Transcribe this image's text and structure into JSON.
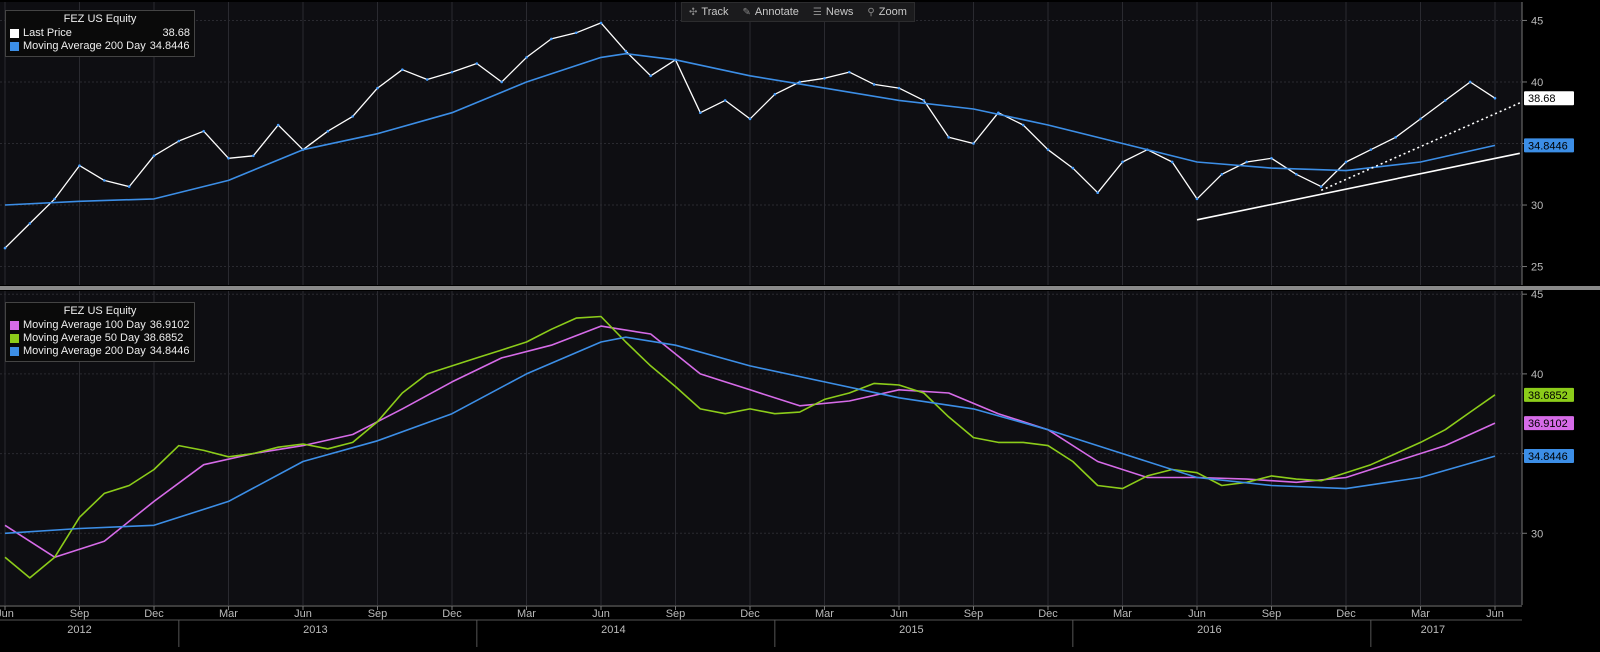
{
  "toolbar": {
    "items": [
      {
        "label": "Track",
        "icon": "crosshair-icon"
      },
      {
        "label": "Annotate",
        "icon": "pencil-icon"
      },
      {
        "label": "News",
        "icon": "news-icon"
      },
      {
        "label": "Zoom",
        "icon": "magnifier-icon"
      }
    ]
  },
  "colors": {
    "background": "#000000",
    "plot_bg": "#0e0e12",
    "grid": "#2a2a30",
    "price": "#ffffff",
    "ma200": "#3c8ee6",
    "ma100": "#d66be8",
    "ma50": "#8ccc1a",
    "separator": "#8a8a8a"
  },
  "top_legend": {
    "title": "FEZ US Equity",
    "rows": [
      {
        "name": "Last Price",
        "value": "38.68",
        "color": "#ffffff"
      },
      {
        "name": "Moving Average 200 Day",
        "value": "34.8446",
        "color": "#3c8ee6"
      }
    ]
  },
  "bottom_legend": {
    "title": "FEZ US Equity",
    "rows": [
      {
        "name": "Moving Average 100 Day",
        "value": "36.9102",
        "color": "#d66be8"
      },
      {
        "name": "Moving Average 50 Day",
        "value": "38.6852",
        "color": "#8ccc1a"
      },
      {
        "name": "Moving Average 200 Day",
        "value": "34.8446",
        "color": "#3c8ee6"
      }
    ]
  },
  "chart_data": [
    {
      "type": "line",
      "panel": "top",
      "title": "",
      "ylim": [
        23.5,
        46.5
      ],
      "y_ticks": [
        25,
        30,
        35,
        40,
        45
      ],
      "x_start": "2012-06",
      "x_end": "2017-06",
      "last_labels": [
        {
          "series": "Last Price",
          "value": 38.68,
          "text": "38.68",
          "color": "#ffffff"
        },
        {
          "series": "Moving Average 200 Day",
          "value": 34.8446,
          "text": "34.8446",
          "color": "#3c8ee6"
        }
      ],
      "series": [
        {
          "name": "Last Price",
          "color": "#ffffff",
          "x": [
            "2012-06",
            "2012-07",
            "2012-08",
            "2012-09",
            "2012-10",
            "2012-11",
            "2012-12",
            "2013-01",
            "2013-02",
            "2013-03",
            "2013-04",
            "2013-05",
            "2013-06",
            "2013-07",
            "2013-08",
            "2013-09",
            "2013-10",
            "2013-11",
            "2013-12",
            "2014-01",
            "2014-02",
            "2014-03",
            "2014-04",
            "2014-05",
            "2014-06",
            "2014-07",
            "2014-08",
            "2014-09",
            "2014-10",
            "2014-11",
            "2014-12",
            "2015-01",
            "2015-02",
            "2015-03",
            "2015-04",
            "2015-05",
            "2015-06",
            "2015-07",
            "2015-08",
            "2015-09",
            "2015-10",
            "2015-11",
            "2015-12",
            "2016-01",
            "2016-02",
            "2016-03",
            "2016-04",
            "2016-05",
            "2016-06",
            "2016-07",
            "2016-08",
            "2016-09",
            "2016-10",
            "2016-11",
            "2016-12",
            "2017-01",
            "2017-02",
            "2017-03",
            "2017-04",
            "2017-05",
            "2017-06"
          ],
          "values": [
            26.5,
            28.5,
            30.5,
            33.2,
            32.0,
            31.5,
            34.0,
            35.2,
            36.0,
            33.8,
            34.0,
            36.5,
            34.5,
            36.0,
            37.2,
            39.5,
            41.0,
            40.2,
            40.8,
            41.5,
            40.0,
            42.0,
            43.5,
            44.0,
            44.8,
            42.5,
            40.5,
            41.8,
            37.5,
            38.5,
            37.0,
            39.0,
            40.0,
            40.3,
            40.8,
            39.8,
            39.5,
            38.5,
            35.5,
            35.0,
            37.5,
            36.5,
            34.5,
            33.0,
            31.0,
            33.5,
            34.5,
            33.5,
            30.5,
            32.5,
            33.5,
            33.8,
            32.5,
            31.5,
            33.5,
            34.5,
            35.5,
            37.0,
            38.5,
            40.0,
            38.68
          ]
        },
        {
          "name": "Moving Average 200 Day",
          "color": "#3c8ee6",
          "x": [
            "2012-06",
            "2012-09",
            "2012-12",
            "2013-03",
            "2013-06",
            "2013-09",
            "2013-12",
            "2014-03",
            "2014-06",
            "2014-07",
            "2014-09",
            "2014-12",
            "2015-03",
            "2015-06",
            "2015-09",
            "2015-12",
            "2016-03",
            "2016-06",
            "2016-09",
            "2016-12",
            "2017-03",
            "2017-06"
          ],
          "values": [
            30.0,
            30.3,
            30.5,
            32.0,
            34.5,
            35.8,
            37.5,
            40.0,
            42.0,
            42.3,
            41.8,
            40.5,
            39.5,
            38.5,
            37.8,
            36.5,
            35.0,
            33.5,
            33.0,
            32.8,
            33.5,
            34.8446
          ]
        },
        {
          "name": "Support trend line",
          "color": "#ffffff",
          "x": [
            "2016-06",
            "2017-07"
          ],
          "values": [
            28.8,
            34.2
          ]
        },
        {
          "name": "Dotted trend line",
          "color": "#ffffff",
          "dashed": true,
          "x": [
            "2016-11",
            "2017-07"
          ],
          "values": [
            31.2,
            38.3
          ]
        }
      ]
    },
    {
      "type": "line",
      "panel": "bottom",
      "title": "",
      "ylim": [
        25.5,
        45.2
      ],
      "y_ticks": [
        30,
        35,
        40,
        45
      ],
      "x_start": "2012-06",
      "x_end": "2017-06",
      "x_tick_labels": [
        "Jun",
        "Sep",
        "Dec",
        "Mar",
        "Jun",
        "Sep",
        "Dec",
        "Mar",
        "Jun",
        "Sep",
        "Dec",
        "Mar",
        "Jun",
        "Sep",
        "Dec",
        "Mar",
        "Jun",
        "Sep",
        "Dec",
        "Mar",
        "Jun"
      ],
      "year_labels": [
        "2012",
        "2013",
        "2014",
        "2015",
        "2016",
        "2017"
      ],
      "last_labels": [
        {
          "series": "Moving Average 50 Day",
          "value": 38.6852,
          "text": "38.6852",
          "color": "#8ccc1a"
        },
        {
          "series": "Moving Average 100 Day",
          "value": 36.9102,
          "text": "36.9102",
          "color": "#d66be8"
        },
        {
          "series": "Moving Average 200 Day",
          "value": 34.8446,
          "text": "34.8446",
          "color": "#3c8ee6"
        }
      ],
      "series": [
        {
          "name": "Moving Average 100 Day",
          "color": "#d66be8",
          "x": [
            "2012-06",
            "2012-08",
            "2012-10",
            "2012-12",
            "2013-02",
            "2013-04",
            "2013-06",
            "2013-08",
            "2013-10",
            "2013-12",
            "2014-02",
            "2014-04",
            "2014-06",
            "2014-08",
            "2014-10",
            "2014-12",
            "2015-02",
            "2015-04",
            "2015-06",
            "2015-08",
            "2015-10",
            "2015-12",
            "2016-02",
            "2016-04",
            "2016-06",
            "2016-08",
            "2016-10",
            "2016-12",
            "2017-02",
            "2017-04",
            "2017-06"
          ],
          "values": [
            30.5,
            28.5,
            29.5,
            32.0,
            34.3,
            35.0,
            35.5,
            36.2,
            37.8,
            39.5,
            41.0,
            41.8,
            43.0,
            42.5,
            40.0,
            39.0,
            38.0,
            38.3,
            39.0,
            38.8,
            37.5,
            36.5,
            34.5,
            33.5,
            33.5,
            33.4,
            33.2,
            33.5,
            34.5,
            35.5,
            36.9102
          ]
        },
        {
          "name": "Moving Average 50 Day",
          "color": "#8ccc1a",
          "x": [
            "2012-06",
            "2012-07",
            "2012-08",
            "2012-09",
            "2012-10",
            "2012-11",
            "2012-12",
            "2013-01",
            "2013-02",
            "2013-03",
            "2013-04",
            "2013-05",
            "2013-06",
            "2013-07",
            "2013-08",
            "2013-09",
            "2013-10",
            "2013-11",
            "2013-12",
            "2014-01",
            "2014-02",
            "2014-03",
            "2014-04",
            "2014-05",
            "2014-06",
            "2014-07",
            "2014-08",
            "2014-09",
            "2014-10",
            "2014-11",
            "2014-12",
            "2015-01",
            "2015-02",
            "2015-03",
            "2015-04",
            "2015-05",
            "2015-06",
            "2015-07",
            "2015-08",
            "2015-09",
            "2015-10",
            "2015-11",
            "2015-12",
            "2016-01",
            "2016-02",
            "2016-03",
            "2016-04",
            "2016-05",
            "2016-06",
            "2016-07",
            "2016-08",
            "2016-09",
            "2016-10",
            "2016-11",
            "2016-12",
            "2017-01",
            "2017-02",
            "2017-03",
            "2017-04",
            "2017-05",
            "2017-06"
          ],
          "values": [
            28.5,
            27.2,
            28.5,
            31.0,
            32.5,
            33.0,
            34.0,
            35.5,
            35.2,
            34.8,
            35.0,
            35.4,
            35.6,
            35.3,
            35.7,
            37.0,
            38.8,
            40.0,
            40.5,
            41.0,
            41.5,
            42.0,
            42.8,
            43.5,
            43.6,
            42.0,
            40.5,
            39.2,
            37.8,
            37.5,
            37.8,
            37.5,
            37.6,
            38.4,
            38.8,
            39.4,
            39.3,
            38.8,
            37.3,
            36.0,
            35.7,
            35.7,
            35.5,
            34.5,
            33.0,
            32.8,
            33.6,
            34.0,
            33.8,
            33.0,
            33.2,
            33.6,
            33.4,
            33.3,
            33.8,
            34.3,
            35.0,
            35.7,
            36.5,
            37.6,
            38.6852
          ]
        },
        {
          "name": "Moving Average 200 Day",
          "color": "#3c8ee6",
          "x": [
            "2012-06",
            "2012-09",
            "2012-12",
            "2013-03",
            "2013-06",
            "2013-09",
            "2013-12",
            "2014-03",
            "2014-06",
            "2014-07",
            "2014-09",
            "2014-12",
            "2015-03",
            "2015-06",
            "2015-09",
            "2015-12",
            "2016-03",
            "2016-06",
            "2016-09",
            "2016-12",
            "2017-03",
            "2017-06"
          ],
          "values": [
            30.0,
            30.3,
            30.5,
            32.0,
            34.5,
            35.8,
            37.5,
            40.0,
            42.0,
            42.3,
            41.8,
            40.5,
            39.5,
            38.5,
            37.8,
            36.5,
            35.0,
            33.5,
            33.0,
            32.8,
            33.5,
            34.8446
          ]
        }
      ]
    }
  ]
}
